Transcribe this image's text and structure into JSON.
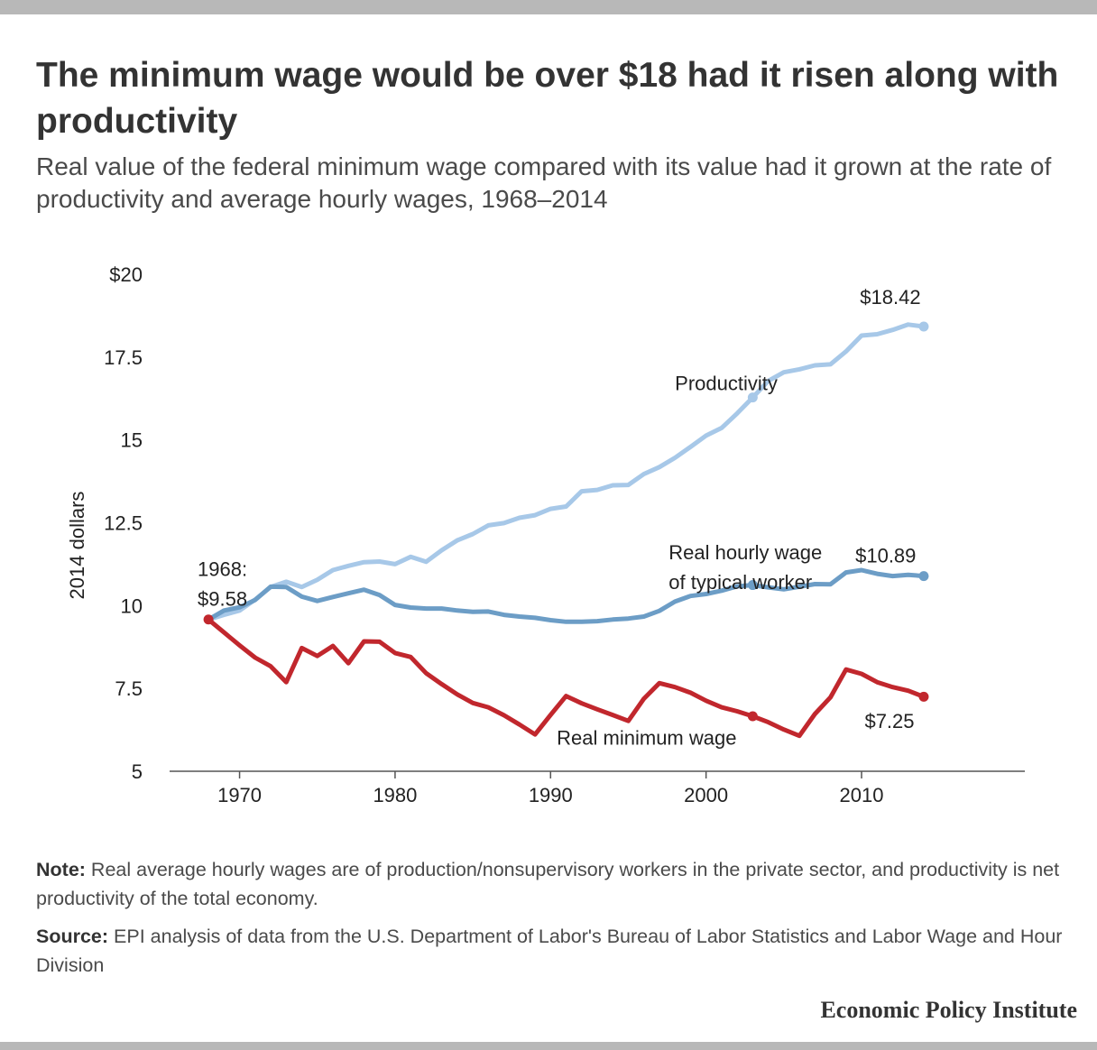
{
  "title": "The minimum wage would be over $18 had it risen along with productivity",
  "subtitle": "Real value of the federal minimum wage compared with its value had it grown at the rate of productivity and average hourly wages, 1968–2014",
  "note_label": "Note:",
  "note_text": "Real average hourly wages are of production/nonsupervisory workers in the private sector, and productivity is net productivity of the total economy.",
  "source_label": "Source:",
  "source_text": "EPI analysis of data from the U.S. Department of Labor's Bureau of Labor Statistics and Labor Wage and Hour Division",
  "brand": "Economic Policy Institute",
  "chart_data": {
    "type": "line",
    "ylabel": "2014 dollars",
    "xlabel": "",
    "xlim": [
      1965.5,
      2020.5
    ],
    "ylim": [
      5,
      20
    ],
    "yticks": [
      {
        "value": 20,
        "label": "$20"
      },
      {
        "value": 17.5,
        "label": "17.5"
      },
      {
        "value": 15,
        "label": "15"
      },
      {
        "value": 12.5,
        "label": "12.5"
      },
      {
        "value": 10,
        "label": "10"
      },
      {
        "value": 7.5,
        "label": "7.5"
      },
      {
        "value": 5,
        "label": "5"
      }
    ],
    "xticks": [
      {
        "value": 1970,
        "label": "1970"
      },
      {
        "value": 1980,
        "label": "1980"
      },
      {
        "value": 1990,
        "label": "1990"
      },
      {
        "value": 2000,
        "label": "2000"
      },
      {
        "value": 2010,
        "label": "2010"
      }
    ],
    "x": [
      1968,
      1969,
      1970,
      1971,
      1972,
      1973,
      1974,
      1975,
      1976,
      1977,
      1978,
      1979,
      1980,
      1981,
      1982,
      1983,
      1984,
      1985,
      1986,
      1987,
      1988,
      1989,
      1990,
      1991,
      1992,
      1993,
      1994,
      1995,
      1996,
      1997,
      1998,
      1999,
      2000,
      2001,
      2002,
      2003,
      2004,
      2005,
      2006,
      2007,
      2008,
      2009,
      2010,
      2011,
      2012,
      2013,
      2014
    ],
    "series": [
      {
        "name": "Productivity",
        "color": "#a7c8e8",
        "values": [
          9.58,
          9.72,
          9.85,
          10.18,
          10.56,
          10.72,
          10.56,
          10.78,
          11.07,
          11.2,
          11.31,
          11.33,
          11.25,
          11.47,
          11.32,
          11.67,
          11.97,
          12.16,
          12.42,
          12.49,
          12.65,
          12.73,
          12.92,
          12.99,
          13.45,
          13.49,
          13.63,
          13.64,
          13.97,
          14.18,
          14.46,
          14.79,
          15.13,
          15.36,
          15.8,
          16.28,
          16.78,
          17.04,
          17.13,
          17.25,
          17.28,
          17.67,
          18.15,
          18.19,
          18.32,
          18.48,
          18.42
        ],
        "markers": [
          2003,
          2014
        ]
      },
      {
        "name": "Real hourly wage of typical worker",
        "color": "#6c9dc6",
        "values": [
          9.58,
          9.85,
          9.95,
          10.17,
          10.57,
          10.56,
          10.27,
          10.14,
          10.26,
          10.37,
          10.48,
          10.32,
          10.02,
          9.94,
          9.91,
          9.91,
          9.85,
          9.81,
          9.82,
          9.72,
          9.67,
          9.63,
          9.56,
          9.51,
          9.51,
          9.53,
          9.58,
          9.61,
          9.67,
          9.84,
          10.12,
          10.29,
          10.35,
          10.45,
          10.58,
          10.62,
          10.55,
          10.49,
          10.57,
          10.65,
          10.64,
          11.0,
          11.07,
          10.96,
          10.89,
          10.93,
          10.89
        ],
        "markers": [
          2003,
          2014
        ]
      },
      {
        "name": "Real minimum wage",
        "color": "#c1272d",
        "values": [
          9.58,
          9.19,
          8.8,
          8.43,
          8.17,
          7.69,
          8.72,
          8.48,
          8.78,
          8.26,
          8.92,
          8.91,
          8.57,
          8.45,
          7.96,
          7.63,
          7.32,
          7.06,
          6.93,
          6.69,
          6.41,
          6.11,
          6.7,
          7.27,
          7.05,
          6.87,
          6.7,
          6.52,
          7.19,
          7.66,
          7.54,
          7.37,
          7.13,
          6.93,
          6.81,
          6.66,
          6.48,
          6.26,
          6.07,
          6.73,
          7.23,
          8.07,
          7.94,
          7.69,
          7.54,
          7.43,
          7.25
        ],
        "markers": [
          2003,
          2014
        ]
      }
    ],
    "annotations": [
      {
        "id": "start-label-year",
        "text": "1968:",
        "x": 1967.3,
        "y": 10.9,
        "anchor": "start"
      },
      {
        "id": "start-label-value",
        "text": "$9.58",
        "x": 1967.3,
        "y": 10.0,
        "anchor": "start"
      },
      {
        "id": "label-productivity",
        "text": "Productivity",
        "x": 1998.0,
        "y": 16.5,
        "anchor": "start"
      },
      {
        "id": "label-productivity-end",
        "text": "$18.42",
        "x": 2009.9,
        "y": 19.1,
        "anchor": "start"
      },
      {
        "id": "label-wage-line1",
        "text": "Real hourly wage",
        "x": 1997.6,
        "y": 11.4,
        "anchor": "start"
      },
      {
        "id": "label-wage-line2",
        "text": "of typical worker",
        "x": 1997.6,
        "y": 10.5,
        "anchor": "start"
      },
      {
        "id": "label-wage-end",
        "text": "$10.89",
        "x": 2009.6,
        "y": 11.3,
        "anchor": "start"
      },
      {
        "id": "label-minwage",
        "text": "Real minimum wage",
        "x": 1990.4,
        "y": 5.8,
        "anchor": "start"
      },
      {
        "id": "label-minwage-end",
        "text": "$7.25",
        "x": 2010.2,
        "y": 6.3,
        "anchor": "start"
      }
    ]
  }
}
